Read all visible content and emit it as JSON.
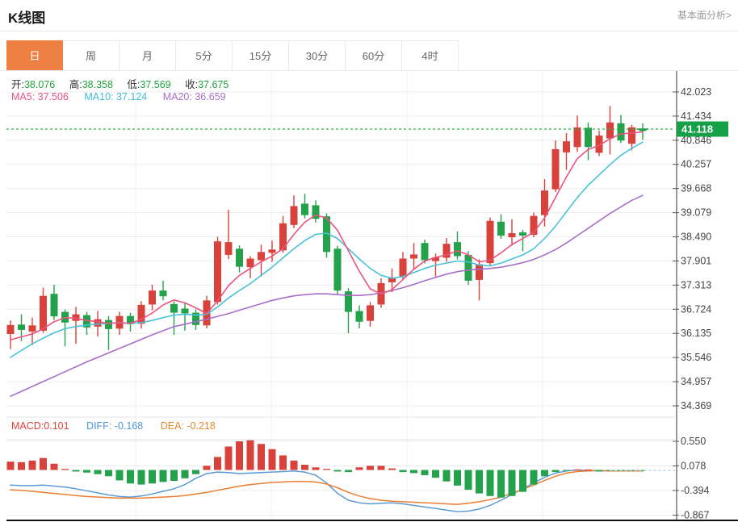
{
  "page": {
    "title": "K线图",
    "fundamental_link": "基本面分析>"
  },
  "tabs": {
    "items": [
      "日",
      "周",
      "月",
      "5分",
      "15分",
      "30分",
      "60分",
      "4时"
    ],
    "names": [
      "tab-daily",
      "tab-weekly",
      "tab-monthly",
      "tab-5min",
      "tab-15min",
      "tab-30min",
      "tab-60min",
      "tab-4hour"
    ],
    "active_index": 0,
    "active_color": "#ee8043"
  },
  "info": {
    "open_label": "开:",
    "open": "38.076",
    "high_label": "高:",
    "high": "38.358",
    "low_label": "低:",
    "low": "37.569",
    "close_label": "收:",
    "close": "37.675",
    "ma5_label": "MA5:",
    "ma5": "37.506",
    "ma10_label": "MA10:",
    "ma10": "37.124",
    "ma20_label": "MA20:",
    "ma20": "36.659"
  },
  "macd_info": {
    "macd_label": "MACD:",
    "macd": "0.101",
    "diff_label": "DIFF:",
    "diff": "-0.168",
    "dea_label": "DEA:",
    "dea": "-0.218"
  },
  "chart_data": {
    "type": "candlestick+macd",
    "title": "K线图 daily candlestick with MA5/MA10/MA20 overlays and MACD sub-panel",
    "price_axis_ticks": [
      "42.023",
      "41.434",
      "40.846",
      "40.257",
      "39.668",
      "39.079",
      "38.490",
      "37.901",
      "37.313",
      "36.724",
      "36.135",
      "35.546",
      "34.957",
      "34.369"
    ],
    "current_price": "41.118",
    "macd_axis_ticks": [
      "0.550",
      "0.078",
      "-0.394",
      "-0.867"
    ],
    "grid": true,
    "legend_position": "top-left overlay",
    "candles_ohlc": [
      [
        36.12,
        36.45,
        35.75,
        36.34
      ],
      [
        36.35,
        36.6,
        35.95,
        36.22
      ],
      [
        36.18,
        36.52,
        35.85,
        36.33
      ],
      [
        36.2,
        37.25,
        36.15,
        37.05
      ],
      [
        37.1,
        37.32,
        36.46,
        36.55
      ],
      [
        36.66,
        36.72,
        35.82,
        36.4
      ],
      [
        36.44,
        36.78,
        35.88,
        36.6
      ],
      [
        36.58,
        36.66,
        36.1,
        36.28
      ],
      [
        36.3,
        36.68,
        36.06,
        36.48
      ],
      [
        36.46,
        36.56,
        35.73,
        36.24
      ],
      [
        36.25,
        36.66,
        36.1,
        36.56
      ],
      [
        36.56,
        36.64,
        36.18,
        36.36
      ],
      [
        36.37,
        36.92,
        36.25,
        36.83
      ],
      [
        36.84,
        37.32,
        36.7,
        37.18
      ],
      [
        37.18,
        37.42,
        36.94,
        37.04
      ],
      [
        36.85,
        36.92,
        36.1,
        36.64
      ],
      [
        36.74,
        36.88,
        36.2,
        36.62
      ],
      [
        36.64,
        36.72,
        36.22,
        36.34
      ],
      [
        36.33,
        37.05,
        36.26,
        36.94
      ],
      [
        36.9,
        38.49,
        36.84,
        38.38
      ],
      [
        38.05,
        39.15,
        37.95,
        38.36
      ],
      [
        38.2,
        38.28,
        37.62,
        37.76
      ],
      [
        37.75,
        38.02,
        37.48,
        37.96
      ],
      [
        37.92,
        38.3,
        37.52,
        38.12
      ],
      [
        38.1,
        38.4,
        37.88,
        38.18
      ],
      [
        38.16,
        39.0,
        38.1,
        38.82
      ],
      [
        38.78,
        39.5,
        38.7,
        39.24
      ],
      [
        39.3,
        39.54,
        38.94,
        39.02
      ],
      [
        39.26,
        39.38,
        38.84,
        38.93
      ],
      [
        38.99,
        39.06,
        37.98,
        38.12
      ],
      [
        38.2,
        38.27,
        37.08,
        37.18
      ],
      [
        37.16,
        37.24,
        36.14,
        36.66
      ],
      [
        36.68,
        36.82,
        36.26,
        36.42
      ],
      [
        36.44,
        36.9,
        36.3,
        36.82
      ],
      [
        36.84,
        37.48,
        36.76,
        37.36
      ],
      [
        37.38,
        37.72,
        37.14,
        37.5
      ],
      [
        37.52,
        38.12,
        37.44,
        37.96
      ],
      [
        37.96,
        38.34,
        37.68,
        38.06
      ],
      [
        38.34,
        38.42,
        37.84,
        37.92
      ],
      [
        37.9,
        38.08,
        37.52,
        37.99
      ],
      [
        37.98,
        38.46,
        37.88,
        38.32
      ],
      [
        38.36,
        38.62,
        37.94,
        38.02
      ],
      [
        38.05,
        38.14,
        37.32,
        37.42
      ],
      [
        37.44,
        37.94,
        36.94,
        37.82
      ],
      [
        37.85,
        38.96,
        37.8,
        38.88
      ],
      [
        38.86,
        39.04,
        38.44,
        38.52
      ],
      [
        38.48,
        38.92,
        38.28,
        38.58
      ],
      [
        38.6,
        38.66,
        38.14,
        38.52
      ],
      [
        38.54,
        39.08,
        38.48,
        39.0
      ],
      [
        39.02,
        39.9,
        38.74,
        39.62
      ],
      [
        39.65,
        40.84,
        39.58,
        40.63
      ],
      [
        40.55,
        41.02,
        40.12,
        40.82
      ],
      [
        40.68,
        41.45,
        40.56,
        41.16
      ],
      [
        41.15,
        41.28,
        40.36,
        40.68
      ],
      [
        40.54,
        41.08,
        40.46,
        40.96
      ],
      [
        40.89,
        41.68,
        40.5,
        41.28
      ],
      [
        41.26,
        41.46,
        40.78,
        40.84
      ],
      [
        40.76,
        41.22,
        40.6,
        41.16
      ],
      [
        41.12,
        41.26,
        40.86,
        41.07
      ]
    ],
    "ma5": [
      35.98,
      36.05,
      36.12,
      36.25,
      36.42,
      36.52,
      36.5,
      36.45,
      36.42,
      36.38,
      36.4,
      36.38,
      36.48,
      36.63,
      36.83,
      36.95,
      36.88,
      36.76,
      36.62,
      36.93,
      37.3,
      37.55,
      37.72,
      37.88,
      38.02,
      38.2,
      38.55,
      38.85,
      39.02,
      38.95,
      38.65,
      38.15,
      37.65,
      37.22,
      37.1,
      37.2,
      37.45,
      37.7,
      37.9,
      37.99,
      38.05,
      38.15,
      38.05,
      37.88,
      37.92,
      38.1,
      38.3,
      38.45,
      38.6,
      38.95,
      39.45,
      39.95,
      40.4,
      40.62,
      40.72,
      40.88,
      41.0,
      41.02,
      41.05
    ],
    "ma10": [
      35.55,
      35.72,
      35.88,
      36.02,
      36.15,
      36.25,
      36.3,
      36.34,
      36.36,
      36.38,
      36.4,
      36.38,
      36.4,
      36.45,
      36.52,
      36.58,
      36.6,
      36.58,
      36.6,
      36.78,
      37.0,
      37.18,
      37.35,
      37.55,
      37.75,
      37.98,
      38.2,
      38.4,
      38.55,
      38.58,
      38.45,
      38.2,
      37.95,
      37.72,
      37.55,
      37.48,
      37.52,
      37.62,
      37.72,
      37.8,
      37.85,
      37.9,
      37.88,
      37.8,
      37.78,
      37.85,
      37.95,
      38.05,
      38.2,
      38.45,
      38.75,
      39.1,
      39.45,
      39.75,
      40.0,
      40.25,
      40.48,
      40.65,
      40.8
    ],
    "ma20": [
      34.6,
      34.72,
      34.84,
      34.96,
      35.08,
      35.2,
      35.32,
      35.44,
      35.55,
      35.66,
      35.77,
      35.88,
      35.99,
      36.1,
      36.2,
      36.3,
      36.36,
      36.42,
      36.48,
      36.55,
      36.62,
      36.7,
      36.78,
      36.86,
      36.94,
      37.0,
      37.05,
      37.08,
      37.1,
      37.1,
      37.08,
      37.06,
      37.06,
      37.08,
      37.12,
      37.18,
      37.25,
      37.33,
      37.42,
      37.5,
      37.58,
      37.64,
      37.68,
      37.7,
      37.72,
      37.75,
      37.8,
      37.86,
      37.94,
      38.05,
      38.18,
      38.34,
      38.52,
      38.7,
      38.88,
      39.06,
      39.22,
      39.38,
      39.5
    ],
    "macd_hist": [
      0.16,
      0.15,
      0.18,
      0.23,
      0.12,
      0.02,
      -0.03,
      -0.05,
      -0.08,
      -0.12,
      -0.2,
      -0.26,
      -0.28,
      -0.26,
      -0.23,
      -0.21,
      -0.16,
      -0.08,
      0.08,
      0.25,
      0.45,
      0.55,
      0.57,
      0.5,
      0.4,
      0.28,
      0.18,
      0.1,
      0.05,
      0.02,
      -0.03,
      -0.04,
      0.05,
      0.08,
      0.08,
      0.03,
      -0.04,
      -0.06,
      -0.1,
      -0.15,
      -0.22,
      -0.3,
      -0.38,
      -0.45,
      -0.5,
      -0.53,
      -0.5,
      -0.42,
      -0.28,
      -0.12,
      -0.04,
      -0.02,
      0.01,
      0.01,
      -0.03,
      -0.01,
      -0.02,
      -0.01,
      -0.01
    ],
    "diff_line": [
      -0.29,
      -0.3,
      -0.3,
      -0.29,
      -0.31,
      -0.33,
      -0.36,
      -0.4,
      -0.44,
      -0.48,
      -0.51,
      -0.52,
      -0.5,
      -0.46,
      -0.41,
      -0.36,
      -0.28,
      -0.16,
      -0.07,
      -0.04,
      -0.05,
      -0.07,
      -0.06,
      -0.05,
      -0.04,
      -0.03,
      -0.02,
      -0.04,
      -0.1,
      -0.25,
      -0.45,
      -0.58,
      -0.63,
      -0.65,
      -0.64,
      -0.63,
      -0.65,
      -0.68,
      -0.71,
      -0.74,
      -0.77,
      -0.8,
      -0.79,
      -0.75,
      -0.68,
      -0.58,
      -0.47,
      -0.36,
      -0.25,
      -0.14,
      -0.06,
      -0.02,
      0.0,
      -0.01,
      -0.01,
      -0.02,
      -0.02,
      -0.01,
      -0.01
    ],
    "dea_line": [
      -0.38,
      -0.39,
      -0.41,
      -0.43,
      -0.45,
      -0.47,
      -0.49,
      -0.51,
      -0.52,
      -0.53,
      -0.54,
      -0.54,
      -0.54,
      -0.53,
      -0.52,
      -0.51,
      -0.49,
      -0.46,
      -0.43,
      -0.39,
      -0.35,
      -0.31,
      -0.28,
      -0.26,
      -0.24,
      -0.23,
      -0.22,
      -0.22,
      -0.23,
      -0.27,
      -0.34,
      -0.43,
      -0.5,
      -0.55,
      -0.58,
      -0.6,
      -0.61,
      -0.62,
      -0.63,
      -0.64,
      -0.65,
      -0.66,
      -0.64,
      -0.61,
      -0.57,
      -0.52,
      -0.45,
      -0.37,
      -0.29,
      -0.2,
      -0.12,
      -0.06,
      -0.03,
      -0.02,
      -0.01,
      -0.02,
      -0.02,
      -0.02,
      -0.02
    ],
    "colors": {
      "up": "#d8423a",
      "down": "#23a24b",
      "ma5": "#ec5380",
      "ma10": "#49c2da",
      "ma20": "#a86fc8",
      "diff": "#5b9bd5",
      "dea": "#ed7d31",
      "price_line": "#2fae4c",
      "price_tag_bg": "#16a047",
      "price_tag_text": "#ffffff",
      "grid": "#ececec",
      "axis": "#555555",
      "tick_text": "#444444"
    }
  }
}
